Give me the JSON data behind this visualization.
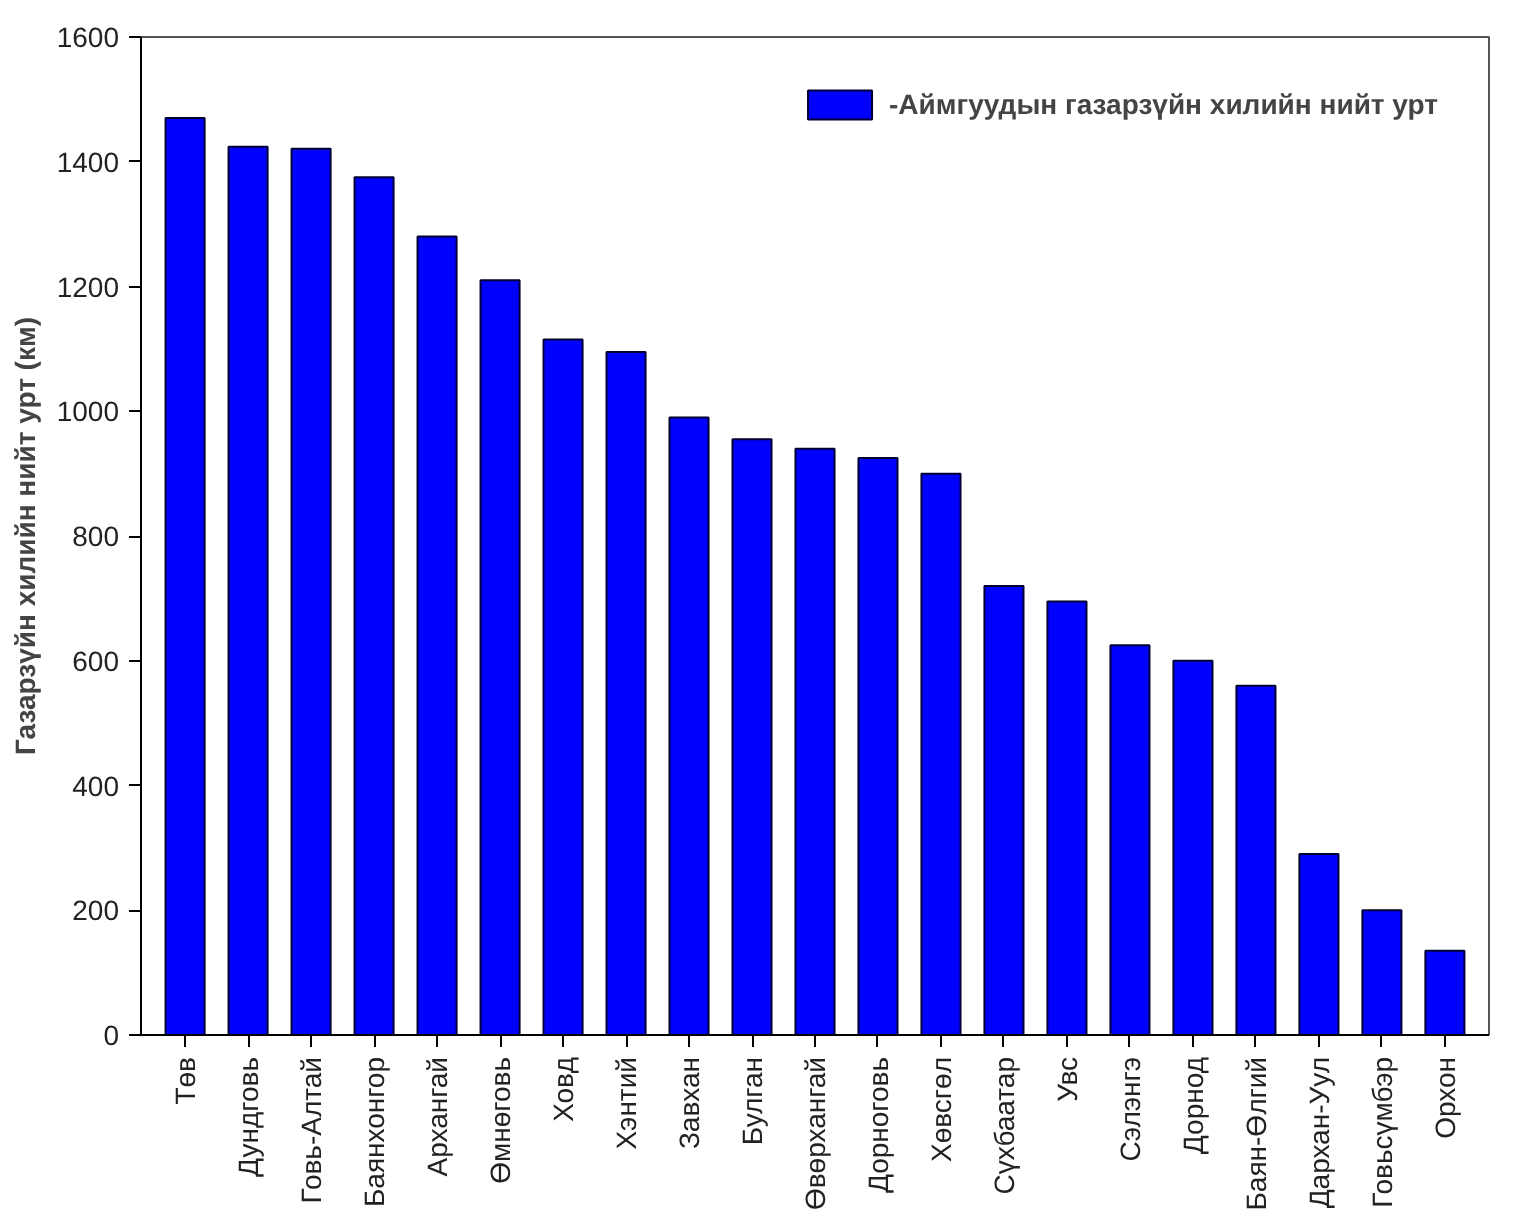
{
  "chart_data": {
    "type": "bar",
    "ylabel": "Газарзүйн хилийн нийт урт (км)",
    "categories": [
      "Төв",
      "Дундговь",
      "Говь-Алтай",
      "Баянхонгор",
      "Архангай",
      "Өмнөговь",
      "Ховд",
      "Хэнтий",
      "Завхан",
      "Булган",
      "Өвөрхангай",
      "Дорноговь",
      "Хөвсгөл",
      "Сүхбаатар",
      "Увс",
      "Сэлэнгэ",
      "Дорнод",
      "Баян-Өлгий",
      "Дархан-Уул",
      "Говьсүмбэр",
      "Орхон"
    ],
    "series": [
      {
        "name": "-Аймгуудын газарзүйн хилийн нийт урт",
        "color": "#0000ff",
        "values": [
          1470,
          1424,
          1421,
          1375,
          1280,
          1210,
          1115,
          1095,
          990,
          955,
          940,
          925,
          900,
          720,
          695,
          625,
          600,
          560,
          290,
          200,
          135
        ]
      }
    ],
    "ylim": [
      0,
      1600
    ],
    "yticks": [
      0,
      200,
      400,
      600,
      800,
      1000,
      1200,
      1400,
      1600
    ],
    "grid": false,
    "legend": "top right"
  }
}
